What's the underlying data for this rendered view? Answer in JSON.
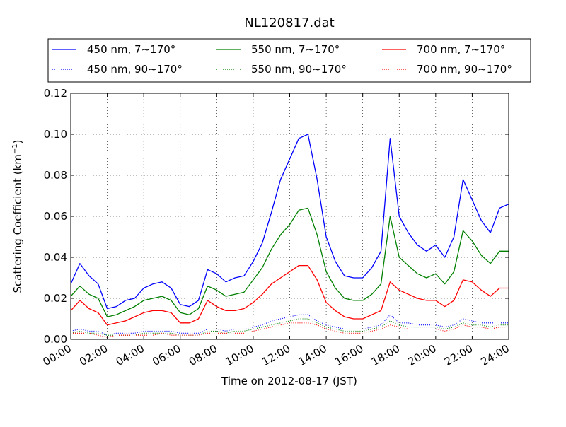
{
  "chart_data": {
    "type": "line",
    "title": "NL120817.dat",
    "xlabel": "Time on 2012-08-17 (JST)",
    "ylabel": "Scattering Coefficient (km",
    "ylabel_sup": "−1",
    "ylabel_close": ")",
    "xlim": [
      0,
      24
    ],
    "ylim": [
      0,
      0.12
    ],
    "grid": true,
    "legend_position": "top, above plot, 3 columns",
    "x_ticks": [
      0,
      2,
      4,
      6,
      8,
      10,
      12,
      14,
      16,
      18,
      20,
      22,
      24
    ],
    "x_tick_labels": [
      "00:00",
      "02:00",
      "04:00",
      "06:00",
      "08:00",
      "10:00",
      "12:00",
      "14:00",
      "16:00",
      "18:00",
      "20:00",
      "22:00",
      "24:00"
    ],
    "y_ticks": [
      0,
      0.02,
      0.04,
      0.06,
      0.08,
      0.1,
      0.12
    ],
    "y_tick_labels": [
      "0.00",
      "0.02",
      "0.04",
      "0.06",
      "0.08",
      "0.10",
      "0.12"
    ],
    "x": [
      0.0,
      0.5,
      1.0,
      1.5,
      2.0,
      2.5,
      3.0,
      3.5,
      4.0,
      4.5,
      5.0,
      5.5,
      6.0,
      6.5,
      7.0,
      7.5,
      8.0,
      8.5,
      9.0,
      9.5,
      10.0,
      10.5,
      11.0,
      11.5,
      12.0,
      12.5,
      13.0,
      13.5,
      14.0,
      14.5,
      15.0,
      15.5,
      16.0,
      16.5,
      17.0,
      17.5,
      18.0,
      18.5,
      19.0,
      19.5,
      20.0,
      20.5,
      21.0,
      21.5,
      22.0,
      22.5,
      23.0,
      23.5,
      24.0
    ],
    "series": [
      {
        "name": "450 nm, 7∼170°",
        "color": "#0000ff",
        "style": "solid",
        "values": [
          0.027,
          0.037,
          0.031,
          0.027,
          0.015,
          0.016,
          0.019,
          0.02,
          0.025,
          0.027,
          0.028,
          0.025,
          0.017,
          0.016,
          0.019,
          0.034,
          0.032,
          0.028,
          0.03,
          0.031,
          0.038,
          0.047,
          0.062,
          0.078,
          0.088,
          0.098,
          0.1,
          0.078,
          0.05,
          0.038,
          0.031,
          0.03,
          0.03,
          0.035,
          0.043,
          0.098,
          0.06,
          0.052,
          0.046,
          0.043,
          0.046,
          0.04,
          0.05,
          0.078,
          0.068,
          0.058,
          0.052,
          0.064,
          0.066
        ]
      },
      {
        "name": "550 nm, 7∼170°",
        "color": "#008000",
        "style": "solid",
        "values": [
          0.021,
          0.026,
          0.022,
          0.02,
          0.011,
          0.012,
          0.014,
          0.016,
          0.019,
          0.02,
          0.021,
          0.019,
          0.013,
          0.012,
          0.015,
          0.026,
          0.024,
          0.021,
          0.022,
          0.023,
          0.029,
          0.035,
          0.044,
          0.051,
          0.056,
          0.063,
          0.064,
          0.051,
          0.033,
          0.025,
          0.02,
          0.019,
          0.019,
          0.022,
          0.027,
          0.06,
          0.04,
          0.036,
          0.032,
          0.03,
          0.032,
          0.027,
          0.033,
          0.053,
          0.048,
          0.041,
          0.037,
          0.043,
          0.043
        ]
      },
      {
        "name": "700 nm, 7∼170°",
        "color": "#ff0000",
        "style": "solid",
        "values": [
          0.014,
          0.019,
          0.015,
          0.013,
          0.007,
          0.008,
          0.009,
          0.011,
          0.013,
          0.014,
          0.014,
          0.013,
          0.008,
          0.008,
          0.01,
          0.019,
          0.016,
          0.014,
          0.014,
          0.015,
          0.018,
          0.022,
          0.027,
          0.03,
          0.033,
          0.036,
          0.036,
          0.029,
          0.018,
          0.014,
          0.011,
          0.01,
          0.01,
          0.012,
          0.014,
          0.028,
          0.024,
          0.022,
          0.02,
          0.019,
          0.019,
          0.016,
          0.019,
          0.029,
          0.028,
          0.024,
          0.021,
          0.025,
          0.025
        ]
      },
      {
        "name": "450 nm, 90∼170°",
        "color": "#0000ff",
        "style": "dotted",
        "values": [
          0.004,
          0.005,
          0.004,
          0.004,
          0.002,
          0.003,
          0.003,
          0.003,
          0.004,
          0.004,
          0.004,
          0.004,
          0.003,
          0.003,
          0.003,
          0.005,
          0.005,
          0.004,
          0.005,
          0.005,
          0.006,
          0.007,
          0.009,
          0.01,
          0.011,
          0.012,
          0.012,
          0.009,
          0.007,
          0.006,
          0.005,
          0.005,
          0.005,
          0.006,
          0.007,
          0.012,
          0.008,
          0.008,
          0.007,
          0.007,
          0.007,
          0.006,
          0.007,
          0.01,
          0.009,
          0.008,
          0.008,
          0.008,
          0.008
        ]
      },
      {
        "name": "550 nm, 90∼170°",
        "color": "#008000",
        "style": "dotted",
        "values": [
          0.003,
          0.004,
          0.003,
          0.003,
          0.002,
          0.002,
          0.002,
          0.002,
          0.003,
          0.003,
          0.003,
          0.003,
          0.002,
          0.002,
          0.002,
          0.004,
          0.004,
          0.003,
          0.004,
          0.004,
          0.005,
          0.006,
          0.007,
          0.008,
          0.009,
          0.01,
          0.01,
          0.008,
          0.006,
          0.005,
          0.004,
          0.004,
          0.004,
          0.005,
          0.006,
          0.009,
          0.007,
          0.006,
          0.006,
          0.006,
          0.006,
          0.005,
          0.006,
          0.008,
          0.007,
          0.007,
          0.006,
          0.007,
          0.007
        ]
      },
      {
        "name": "700 nm, 90∼170°",
        "color": "#ff0000",
        "style": "dotted",
        "values": [
          0.003,
          0.003,
          0.003,
          0.002,
          0.001,
          0.002,
          0.002,
          0.002,
          0.002,
          0.002,
          0.003,
          0.002,
          0.002,
          0.002,
          0.002,
          0.003,
          0.003,
          0.003,
          0.003,
          0.003,
          0.004,
          0.005,
          0.006,
          0.007,
          0.008,
          0.008,
          0.008,
          0.007,
          0.005,
          0.004,
          0.003,
          0.003,
          0.003,
          0.004,
          0.005,
          0.007,
          0.006,
          0.005,
          0.005,
          0.005,
          0.005,
          0.004,
          0.005,
          0.007,
          0.006,
          0.006,
          0.005,
          0.006,
          0.006
        ]
      }
    ]
  }
}
